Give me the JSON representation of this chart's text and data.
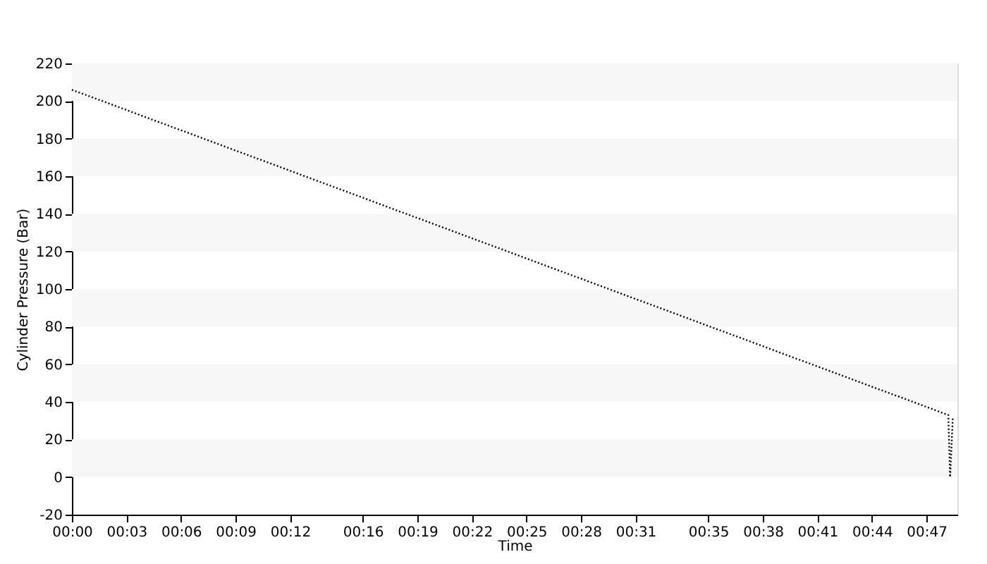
{
  "chart_data": {
    "type": "line",
    "xlabel": "Time",
    "ylabel": "Cylinder Pressure (Bar)",
    "x": [
      0,
      48.2,
      48.3,
      48.45
    ],
    "series": [
      {
        "color": "#000000",
        "values": [
          206,
          33,
          0,
          32
        ]
      }
    ],
    "xlim": [
      0,
      48.7
    ],
    "xticks": [
      {
        "value": 0,
        "label": "00:00"
      },
      {
        "value": 3,
        "label": "00:03"
      },
      {
        "value": 6,
        "label": "00:06"
      },
      {
        "value": 9,
        "label": "00:09"
      },
      {
        "value": 12,
        "label": "00:12"
      },
      {
        "value": 16,
        "label": "00:16"
      },
      {
        "value": 19,
        "label": "00:19"
      },
      {
        "value": 22,
        "label": "00:22"
      },
      {
        "value": 25,
        "label": "00:25"
      },
      {
        "value": 28,
        "label": "00:28"
      },
      {
        "value": 31,
        "label": "00:31"
      },
      {
        "value": 35,
        "label": "00:35"
      },
      {
        "value": 38,
        "label": "00:38"
      },
      {
        "value": 41,
        "label": "00:41"
      },
      {
        "value": 44,
        "label": "00:44"
      },
      {
        "value": 47,
        "label": "00:47"
      }
    ],
    "ylim": [
      -20,
      220
    ],
    "yticks": [
      -20,
      0,
      20,
      40,
      60,
      80,
      100,
      120,
      140,
      160,
      180,
      200,
      220
    ],
    "bands": [
      {
        "axis": "y",
        "from": 0,
        "to": 20,
        "color": "#f7f7f7"
      },
      {
        "axis": "y",
        "from": 40,
        "to": 60,
        "color": "#f7f7f7"
      },
      {
        "axis": "y",
        "from": 80,
        "to": 100,
        "color": "#f7f7f7"
      },
      {
        "axis": "y",
        "from": 120,
        "to": 140,
        "color": "#f7f7f7"
      },
      {
        "axis": "y",
        "from": 160,
        "to": 180,
        "color": "#f7f7f7"
      },
      {
        "axis": "y",
        "from": 200,
        "to": 220,
        "color": "#f7f7f7"
      }
    ],
    "grid": false,
    "marker": "none",
    "line_style": "dotted"
  }
}
